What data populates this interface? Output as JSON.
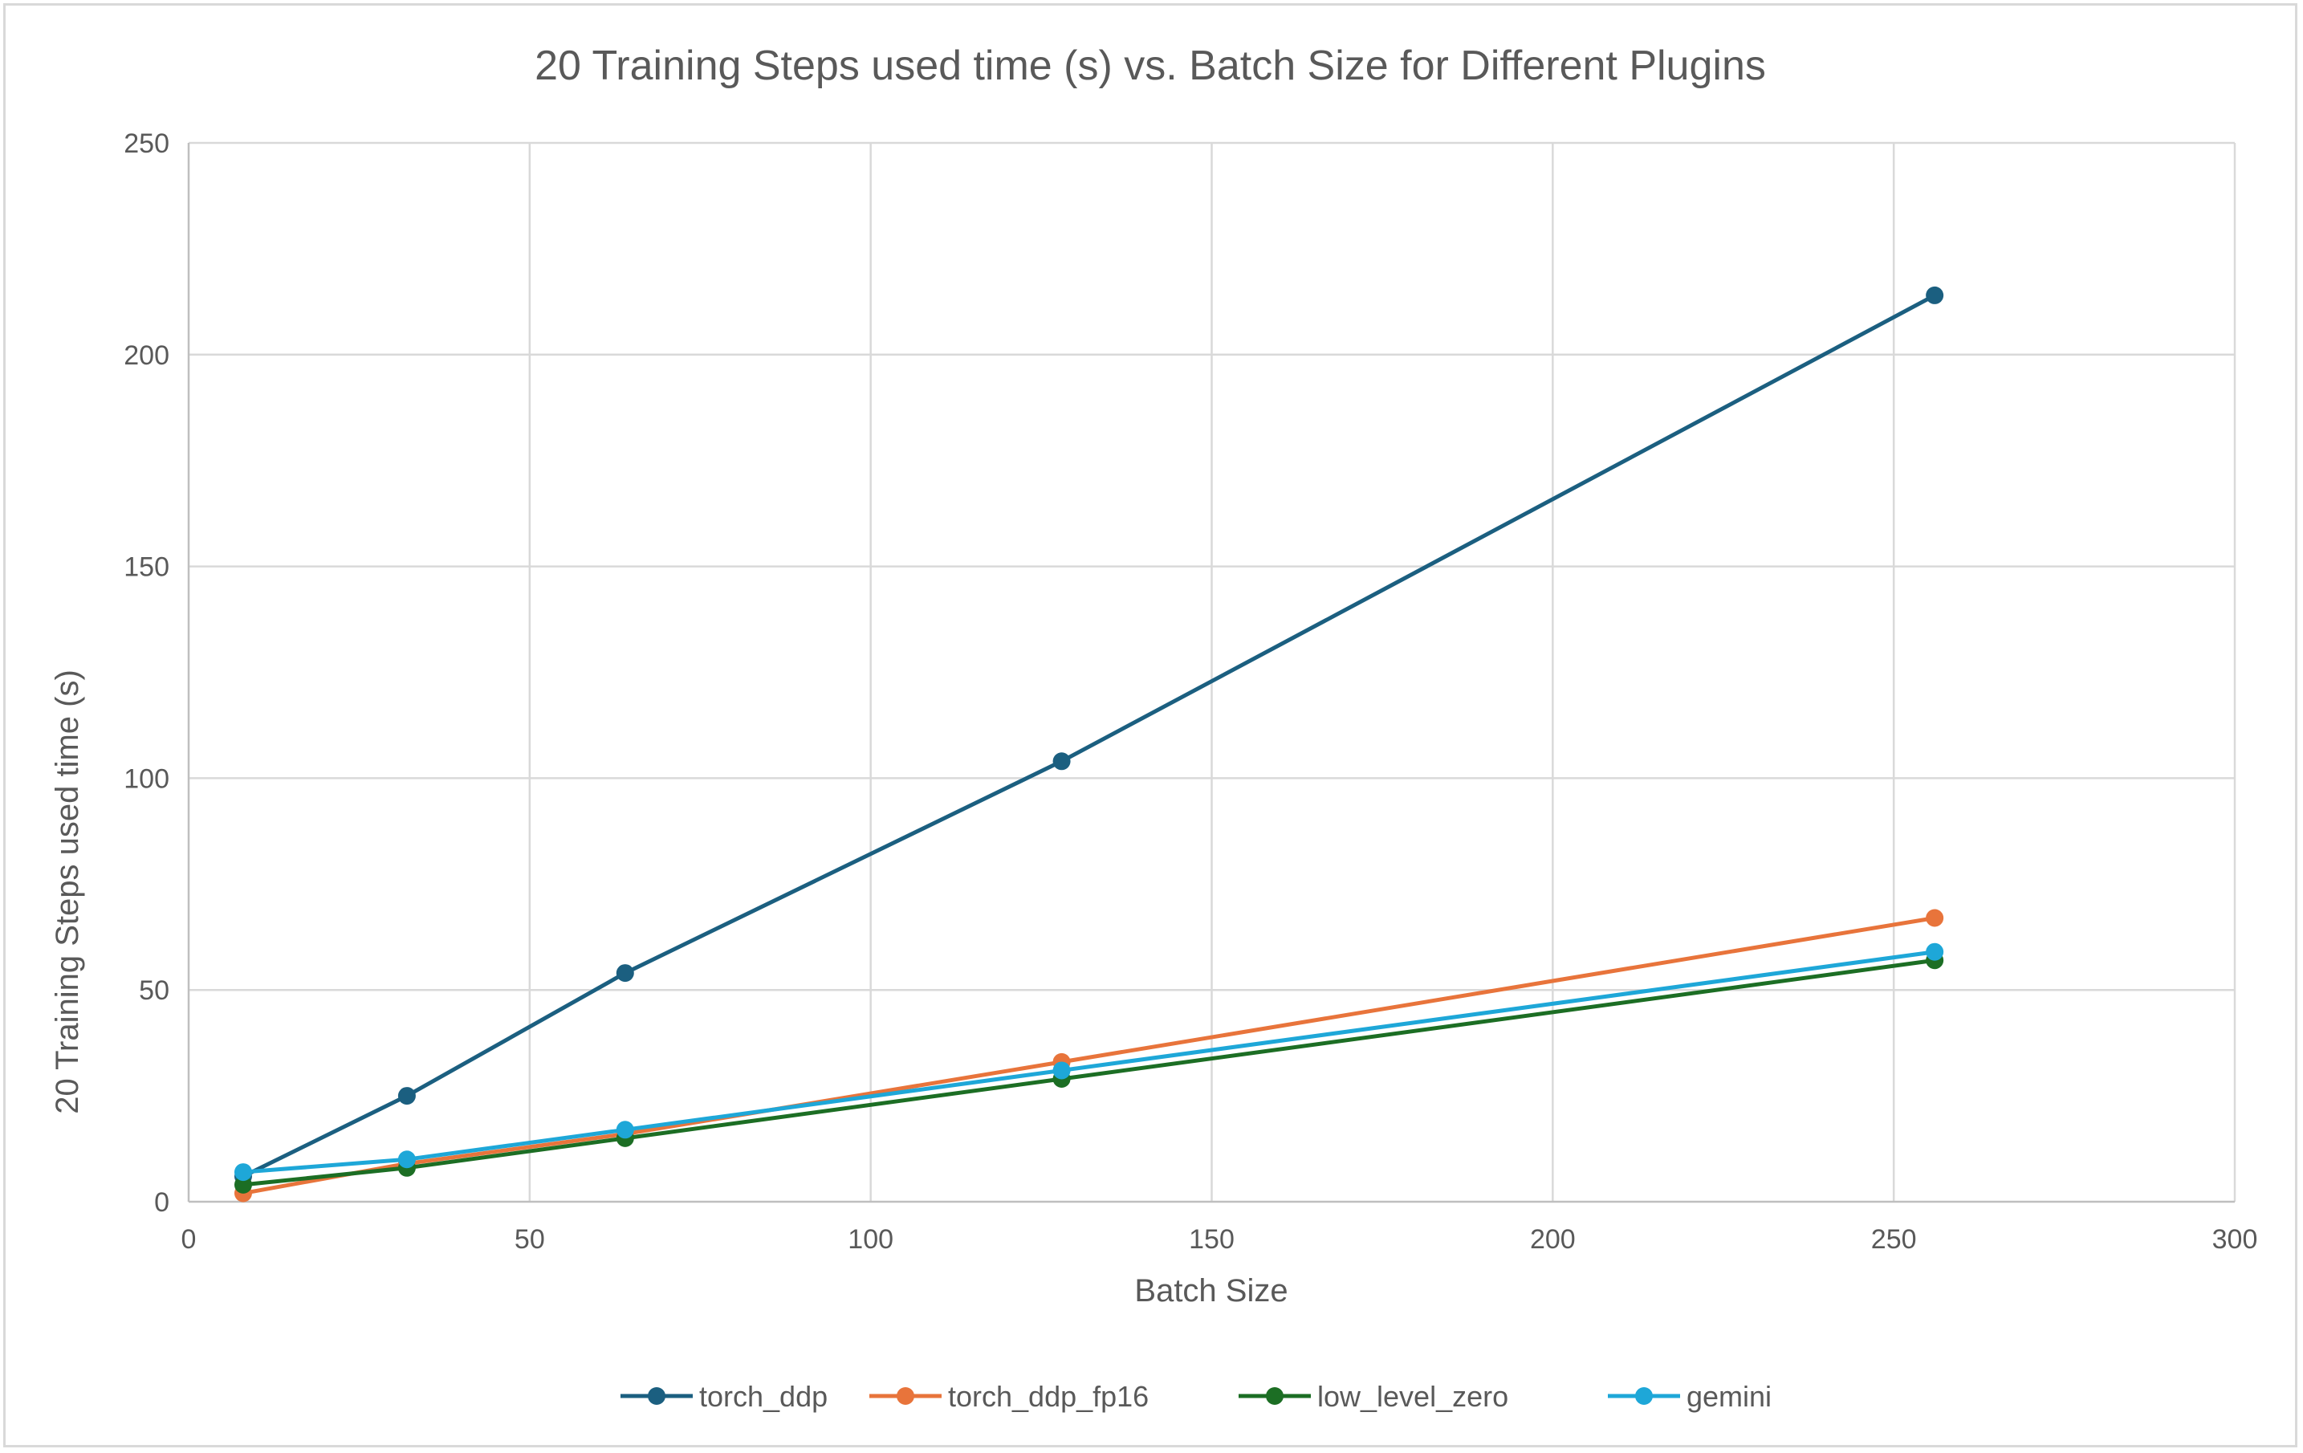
{
  "chart_data": {
    "type": "scatter",
    "title": "20 Training Steps used time (s) vs. Batch Size for Different Plugins",
    "xlabel": "Batch Size",
    "ylabel": "20 Training Steps used time (s)",
    "xlim": [
      0,
      300
    ],
    "ylim": [
      0,
      250
    ],
    "xticks": [
      0,
      50,
      100,
      150,
      200,
      250,
      300
    ],
    "yticks": [
      0,
      50,
      100,
      150,
      200,
      250
    ],
    "grid": true,
    "legend_position": "bottom",
    "lines_with_markers": true,
    "series": [
      {
        "name": "torch_ddp",
        "color": "#1b5f80",
        "points": [
          [
            8,
            6
          ],
          [
            32,
            25
          ],
          [
            64,
            54
          ],
          [
            128,
            104
          ],
          [
            256,
            214
          ]
        ]
      },
      {
        "name": "torch_ddp_fp16",
        "color": "#e8743b",
        "points": [
          [
            8,
            2
          ],
          [
            32,
            9
          ],
          [
            64,
            16
          ],
          [
            128,
            33
          ],
          [
            256,
            67
          ]
        ]
      },
      {
        "name": "low_level_zero",
        "color": "#1c6e24",
        "points": [
          [
            8,
            4
          ],
          [
            32,
            8
          ],
          [
            64,
            15
          ],
          [
            128,
            29
          ],
          [
            256,
            57
          ]
        ]
      },
      {
        "name": "gemini",
        "color": "#1ea7d8",
        "points": [
          [
            8,
            7
          ],
          [
            32,
            10
          ],
          [
            64,
            17
          ],
          [
            128,
            31
          ],
          [
            256,
            59
          ]
        ]
      }
    ]
  }
}
